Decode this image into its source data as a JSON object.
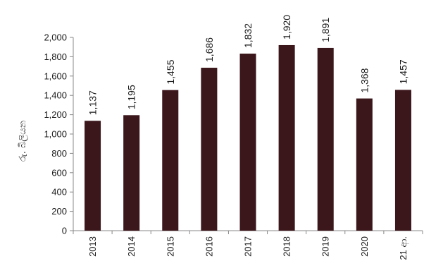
{
  "chart_data": {
    "type": "bar",
    "title": "",
    "xlabel": "",
    "ylabel": "රු. බිලියන",
    "categories": [
      "2013",
      "2014",
      "2015",
      "2016",
      "2017",
      "2018",
      "2019",
      "2020",
      "21 ආ."
    ],
    "values": [
      1137,
      1195,
      1455,
      1686,
      1832,
      1920,
      1891,
      1368,
      1457
    ],
    "data_labels": [
      "1,137",
      "1,195",
      "1,455",
      "1,686",
      "1,832",
      "1,920",
      "1,891",
      "1,368",
      "1,457"
    ],
    "y_ticks": [
      0,
      200,
      400,
      600,
      800,
      1000,
      1200,
      1400,
      1600,
      1800,
      2000
    ],
    "y_tick_labels": [
      "0",
      "200",
      "400",
      "600",
      "800",
      "1,000",
      "1,200",
      "1,400",
      "1,600",
      "1,800",
      "2,000"
    ],
    "ylim": [
      0,
      2000
    ],
    "grid": false,
    "bar_color": "#3b161b"
  }
}
